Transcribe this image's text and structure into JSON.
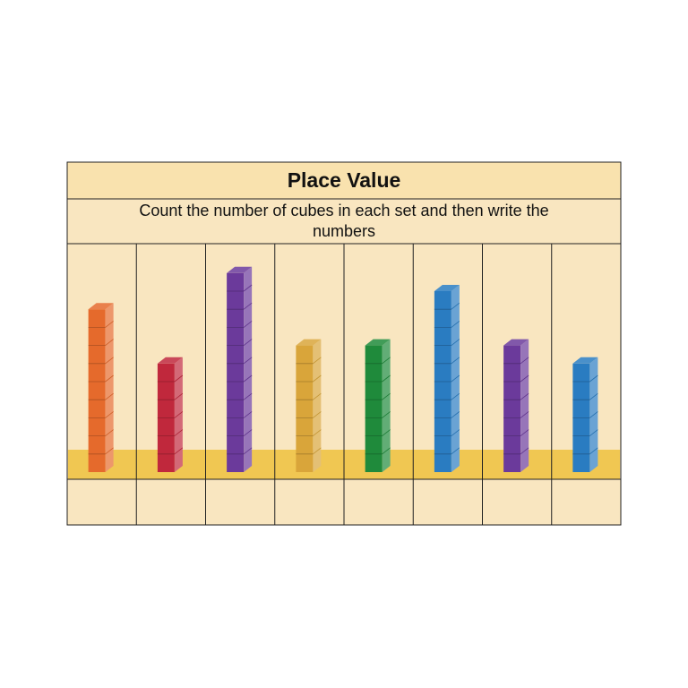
{
  "header": {
    "title": "Place Value",
    "instruction": "Count the number of cubes in each set and then write the numbers"
  },
  "sets": [
    {
      "color": "#e56a2c",
      "cubes": 9
    },
    {
      "color": "#c0283c",
      "cubes": 6
    },
    {
      "color": "#6b3a9b",
      "cubes": 11
    },
    {
      "color": "#d9a53a",
      "cubes": 7
    },
    {
      "color": "#1f8a3b",
      "cubes": 7
    },
    {
      "color": "#2a7cc1",
      "cubes": 10
    },
    {
      "color": "#6b3a9b",
      "cubes": 7
    },
    {
      "color": "#2a7cc1",
      "cubes": 6
    }
  ]
}
